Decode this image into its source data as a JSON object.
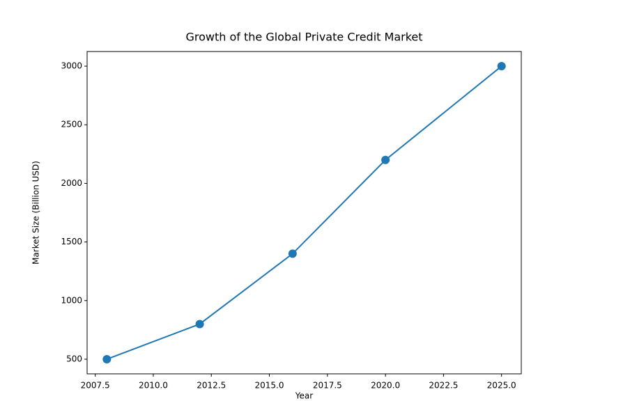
{
  "chart_data": {
    "type": "line",
    "title": "Growth of the Global Private Credit Market",
    "x_label": "Year",
    "y_label": "Market Size (Billion USD)",
    "x": [
      2008,
      2012,
      2016,
      2020,
      2025
    ],
    "series": [
      {
        "color": "#1f77b4",
        "values": [
          500,
          800,
          1400,
          2200,
          3000
        ]
      }
    ],
    "xlim": [
      2007.15,
      2025.85
    ],
    "xticks": [
      {
        "value": 2007.5,
        "label": "2007.5"
      },
      {
        "value": 2010,
        "label": "2010.0"
      },
      {
        "value": 2012.5,
        "label": "2012.5"
      },
      {
        "value": 2015,
        "label": "2015.0"
      },
      {
        "value": 2017.5,
        "label": "2017.5"
      },
      {
        "value": 2020,
        "label": "2020.0"
      },
      {
        "value": 2022.5,
        "label": "2022.5"
      },
      {
        "value": 2025,
        "label": "2025.0"
      }
    ],
    "ylim": [
      375,
      3125
    ],
    "yticks": [
      500,
      1000,
      1500,
      2000,
      2500,
      3000
    ]
  }
}
